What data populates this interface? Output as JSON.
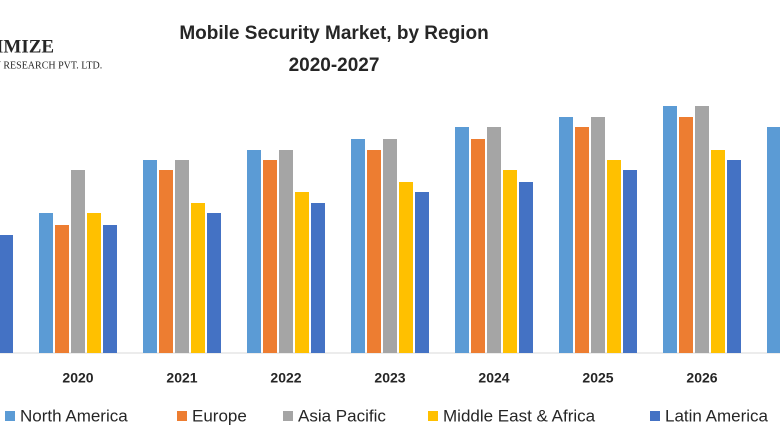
{
  "logo": {
    "line1": "IMIZE",
    "line2": "Y RESEARCH PVT. LTD."
  },
  "chart_data": {
    "type": "bar",
    "title": "Mobile Security Market, by Region",
    "subtitle": "2020-2027",
    "categories": [
      null,
      "2020",
      "2021",
      "2022",
      "2023",
      "2024",
      "2025",
      "2026",
      null
    ],
    "ylim": [
      0,
      250
    ],
    "series": [
      {
        "name": "North America",
        "color": "#5b9bd5",
        "values": [
          null,
          140,
          193,
          203,
          214,
          226,
          236,
          247,
          226
        ]
      },
      {
        "name": "Europe",
        "color": "#ed7d31",
        "values": [
          null,
          128,
          183,
          193,
          203,
          214,
          226,
          236,
          null
        ]
      },
      {
        "name": "Asia Pacific",
        "color": "#a5a5a5",
        "values": [
          null,
          183,
          193,
          203,
          214,
          226,
          236,
          247,
          null
        ]
      },
      {
        "name": "Middle East & Africa",
        "color": "#ffc000",
        "values": [
          null,
          140,
          150,
          161,
          171,
          183,
          193,
          203,
          null
        ]
      },
      {
        "name": "Latin America",
        "color": "#4472c4",
        "values": [
          118,
          128,
          140,
          150,
          161,
          171,
          183,
          193,
          null
        ]
      }
    ],
    "legend": "bottom"
  }
}
